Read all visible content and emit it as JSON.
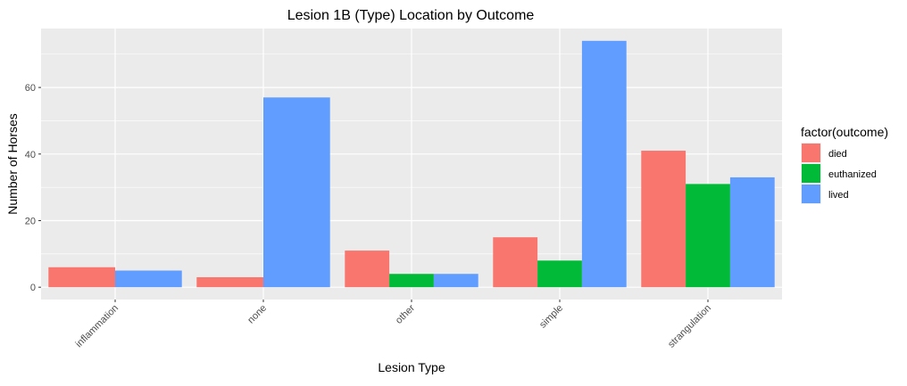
{
  "chart_data": {
    "type": "bar",
    "title": "Lesion 1B (Type) Location by Outcome",
    "xlabel": "Lesion Type",
    "ylabel": "Number of Horses",
    "categories": [
      "inflammation",
      "none",
      "other",
      "simple",
      "strangulation"
    ],
    "series": [
      {
        "name": "died",
        "color": "#F8766D",
        "values": [
          6,
          3,
          11,
          15,
          41
        ]
      },
      {
        "name": "euthanized",
        "color": "#00BA38",
        "values": [
          null,
          null,
          4,
          8,
          31
        ]
      },
      {
        "name": "lived",
        "color": "#619CFF",
        "values": [
          5,
          57,
          4,
          74,
          33
        ]
      }
    ],
    "ylim": [
      -3.7,
      77.7
    ],
    "yticks": [
      0,
      20,
      40,
      60
    ],
    "grid": true,
    "panel_color": "#EBEBEB",
    "legend": {
      "title": "factor(outcome)",
      "position": "right"
    }
  }
}
